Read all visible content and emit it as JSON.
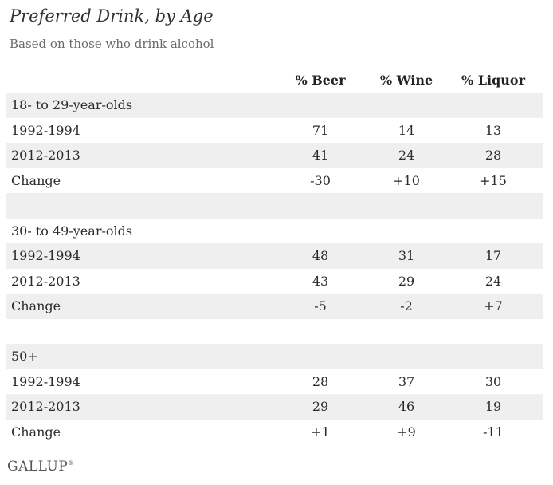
{
  "chart_data": {
    "type": "table",
    "title": "Preferred Drink, by Age",
    "subtitle": "Based on those who drink alcohol",
    "columns": [
      "% Beer",
      "% Wine",
      "% Liquor"
    ],
    "groups": [
      {
        "name": "18- to 29-year-olds",
        "rows": [
          {
            "label": "1992-1994",
            "values": [
              "71",
              "14",
              "13"
            ]
          },
          {
            "label": "2012-2013",
            "values": [
              "41",
              "24",
              "28"
            ]
          },
          {
            "label": "Change",
            "values": [
              "-30",
              "+10",
              "+15"
            ]
          }
        ]
      },
      {
        "name": "30- to 49-year-olds",
        "rows": [
          {
            "label": "1992-1994",
            "values": [
              "48",
              "31",
              "17"
            ]
          },
          {
            "label": "2012-2013",
            "values": [
              "43",
              "29",
              "24"
            ]
          },
          {
            "label": "Change",
            "values": [
              "-5",
              "-2",
              "+7"
            ]
          }
        ]
      },
      {
        "name": "50+",
        "rows": [
          {
            "label": "1992-1994",
            "values": [
              "28",
              "37",
              "30"
            ]
          },
          {
            "label": "2012-2013",
            "values": [
              "29",
              "46",
              "19"
            ]
          },
          {
            "label": "Change",
            "values": [
              "+1",
              "+9",
              "-11"
            ]
          }
        ]
      }
    ],
    "source": "GALLUP"
  },
  "colors": {
    "shaded_row": "#efefef",
    "text": "#2b2b2b"
  }
}
